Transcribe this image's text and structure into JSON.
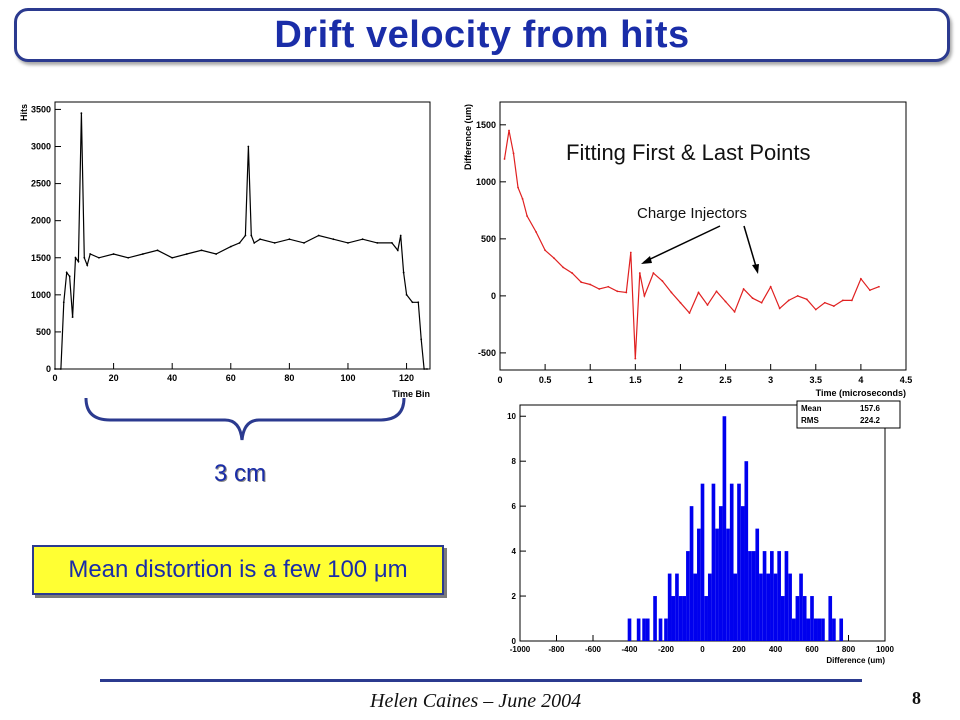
{
  "title": "Drift velocity from hits",
  "brace_label": "3 cm",
  "mean_box": {
    "prefix": "Mean distortion is a few 100 ",
    "unit_symbol": "μ",
    "unit_suffix": "m"
  },
  "fit_label": "Fitting First & Last Points",
  "injectors_label": "Charge Injectors",
  "footer": "Helen Caines – June 2004",
  "page_number": "8",
  "colors": {
    "title": "#1a2da8",
    "frame": "#2b3a8f",
    "highlight": "#ffff33",
    "fit_line": "#e02020",
    "hist_fill": "#0000ee"
  },
  "chart_data": [
    {
      "type": "line",
      "ylabel": "Hits",
      "xlabel": "Time Bin",
      "xlim": [
        0,
        128
      ],
      "ylim": [
        0,
        3600
      ],
      "xticks": [
        "0",
        "20",
        "40",
        "60",
        "80",
        "100",
        "120"
      ],
      "yticks": [
        "0",
        "500",
        "1000",
        "1500",
        "2000",
        "2500",
        "3000",
        "3500"
      ],
      "x": [
        0,
        2,
        3,
        4,
        5,
        6,
        7,
        8,
        9,
        10,
        11,
        12,
        15,
        20,
        25,
        30,
        35,
        40,
        45,
        50,
        55,
        60,
        63,
        65,
        66,
        67,
        68,
        70,
        75,
        80,
        85,
        90,
        95,
        100,
        105,
        110,
        115,
        117,
        118,
        119,
        120,
        122,
        124,
        125,
        126,
        127
      ],
      "values": [
        0,
        0,
        900,
        1300,
        1250,
        700,
        1500,
        1450,
        3450,
        1500,
        1400,
        1550,
        1500,
        1550,
        1500,
        1550,
        1600,
        1500,
        1550,
        1600,
        1550,
        1650,
        1700,
        1800,
        3000,
        1800,
        1700,
        1750,
        1700,
        1750,
        1700,
        1800,
        1750,
        1700,
        1750,
        1700,
        1700,
        1600,
        1800,
        1300,
        1000,
        900,
        900,
        400,
        0,
        0
      ]
    },
    {
      "type": "line",
      "ylabel": "Difference (um)",
      "xlabel": "Time (microseconds)",
      "xlim": [
        0,
        4.5
      ],
      "ylim": [
        -650,
        1700
      ],
      "xticks": [
        "0",
        "0.5",
        "1",
        "1.5",
        "2",
        "2.5",
        "3",
        "3.5",
        "4",
        "4.5"
      ],
      "yticks": [
        "-500",
        "0",
        "500",
        "1000",
        "1500"
      ],
      "x": [
        0.05,
        0.1,
        0.15,
        0.2,
        0.25,
        0.3,
        0.4,
        0.5,
        0.6,
        0.7,
        0.8,
        0.9,
        1.0,
        1.1,
        1.2,
        1.3,
        1.4,
        1.45,
        1.5,
        1.55,
        1.6,
        1.7,
        1.8,
        1.9,
        2.0,
        2.1,
        2.2,
        2.3,
        2.4,
        2.5,
        2.6,
        2.7,
        2.8,
        2.9,
        3.0,
        3.1,
        3.2,
        3.3,
        3.4,
        3.5,
        3.6,
        3.7,
        3.8,
        3.9,
        4.0,
        4.1,
        4.2
      ],
      "values": [
        1200,
        1450,
        1250,
        950,
        850,
        700,
        560,
        400,
        330,
        250,
        200,
        120,
        100,
        60,
        80,
        40,
        30,
        380,
        -550,
        200,
        0,
        200,
        130,
        30,
        -60,
        -150,
        30,
        -80,
        40,
        -50,
        -140,
        60,
        -20,
        -60,
        80,
        -110,
        -40,
        0,
        -30,
        -120,
        -60,
        -90,
        -40,
        -40,
        150,
        50,
        80
      ]
    },
    {
      "type": "bar",
      "xlabel": "Difference (um)",
      "xlim": [
        -1000,
        1000
      ],
      "ylim": [
        0,
        10.5
      ],
      "xticks": [
        "-1000",
        "-800",
        "-600",
        "-400",
        "-200",
        "0",
        "200",
        "400",
        "600",
        "800",
        "1000"
      ],
      "yticks": [
        "0",
        "2",
        "4",
        "6",
        "8",
        "10"
      ],
      "stats": {
        "mean_label": "Mean",
        "mean": "157.6",
        "rms_label": "RMS",
        "rms": "224.2"
      },
      "categories": [
        -400,
        -350,
        -320,
        -300,
        -260,
        -230,
        -200,
        -180,
        -160,
        -140,
        -120,
        -100,
        -80,
        -60,
        -40,
        -20,
        0,
        20,
        40,
        60,
        80,
        100,
        120,
        140,
        160,
        180,
        200,
        220,
        240,
        260,
        280,
        300,
        320,
        340,
        360,
        380,
        400,
        420,
        440,
        460,
        480,
        500,
        520,
        540,
        560,
        580,
        600,
        620,
        640,
        660,
        700,
        720,
        760
      ],
      "values": [
        1,
        1,
        1,
        1,
        2,
        1,
        1,
        3,
        2,
        3,
        2,
        2,
        4,
        6,
        3,
        5,
        7,
        2,
        3,
        7,
        5,
        6,
        10,
        5,
        7,
        3,
        7,
        6,
        8,
        4,
        4,
        5,
        3,
        4,
        3,
        4,
        3,
        4,
        2,
        4,
        3,
        1,
        2,
        3,
        2,
        1,
        2,
        1,
        1,
        1,
        2,
        1,
        1
      ]
    }
  ]
}
